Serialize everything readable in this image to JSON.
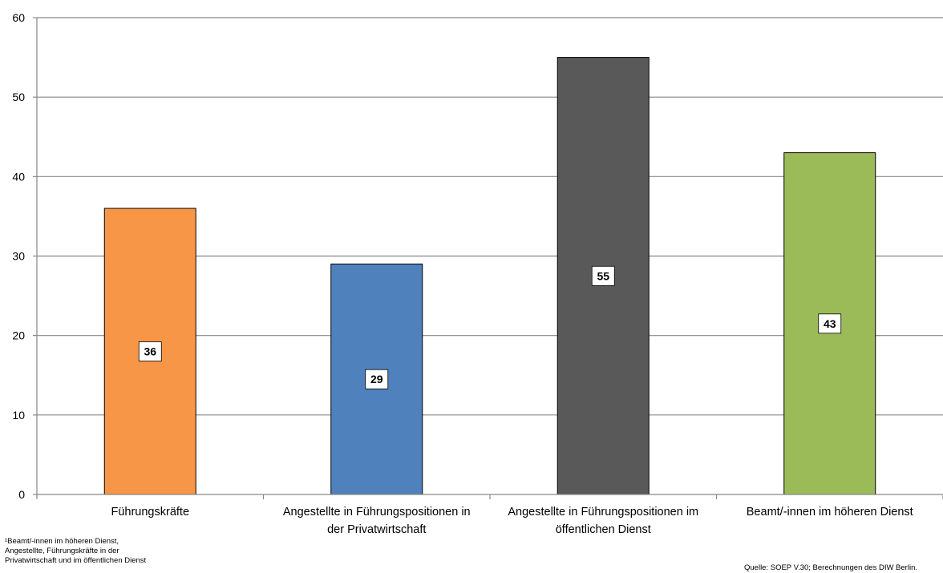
{
  "chart_data": {
    "type": "bar",
    "categories": [
      [
        "Führungskräfte"
      ],
      [
        "Angestellte in Führungspositionen in",
        "der Privatwirtschaft"
      ],
      [
        "Angestellte in Führungspositionen im",
        "öffentlichen Dienst"
      ],
      [
        "Beamt/-innen im höheren Dienst"
      ]
    ],
    "values": [
      36,
      29,
      55,
      43
    ],
    "data_labels": [
      "36",
      "29",
      "55",
      "43"
    ],
    "colors": [
      "#F79646",
      "#4F81BD",
      "#595959",
      "#9BBB59"
    ],
    "ylim": [
      0,
      60
    ],
    "yticks": [
      0,
      10,
      20,
      30,
      40,
      50,
      60
    ],
    "grid": true,
    "title": "",
    "xlabel": "",
    "ylabel": ""
  },
  "footnote": [
    "¹Beamt/-innen im höheren Dienst,",
    "Angestellte, Führungskräfte in der",
    "Privatwirtschaft und im öffentlichen Dienst"
  ],
  "source": "Quelle: SOEP V.30; Berechnungen des DIW Berlin."
}
